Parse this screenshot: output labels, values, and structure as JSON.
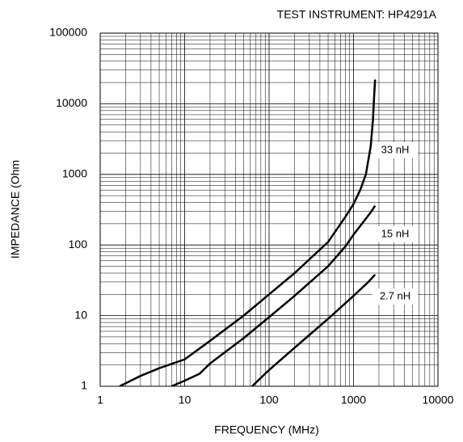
{
  "chart_data": {
    "type": "line",
    "title": "TEST INSTRUMENT: HP4291A",
    "x_label": "FREQUENCY (MHz)",
    "y_label": "IMPEDANCE (Ohm",
    "log_x": true,
    "log_y": true,
    "grid": true,
    "xlim": [
      1,
      10000
    ],
    "xticks": [
      1,
      10,
      100,
      1000,
      10000
    ],
    "ylim": [
      1,
      100000
    ],
    "yticks": [
      1,
      10,
      100,
      1000,
      10000,
      100000
    ],
    "series": [
      {
        "name": "33 nH",
        "color": "#000000",
        "x": [
          1.7,
          3,
          5,
          10,
          20,
          50,
          100,
          200,
          500,
          800,
          1000,
          1200,
          1400,
          1600,
          1700,
          1750,
          1800
        ],
        "values": [
          1,
          1.4,
          1.8,
          2.4,
          4.4,
          10,
          20,
          40,
          110,
          250,
          380,
          600,
          1000,
          2500,
          6000,
          12000,
          22000
        ]
      },
      {
        "name": "15 nH",
        "color": "#000000",
        "x": [
          7,
          10,
          15,
          20,
          50,
          100,
          200,
          500,
          800,
          1000,
          1300,
          1600,
          1800
        ],
        "values": [
          1,
          1.2,
          1.5,
          2.1,
          4.8,
          9.5,
          19,
          50,
          95,
          140,
          210,
          290,
          360
        ]
      },
      {
        "name": "2.7 nH",
        "color": "#000000",
        "x": [
          63,
          100,
          200,
          500,
          1000,
          1500,
          1800
        ],
        "values": [
          1,
          1.7,
          3.5,
          9,
          19,
          30,
          38
        ]
      }
    ]
  }
}
